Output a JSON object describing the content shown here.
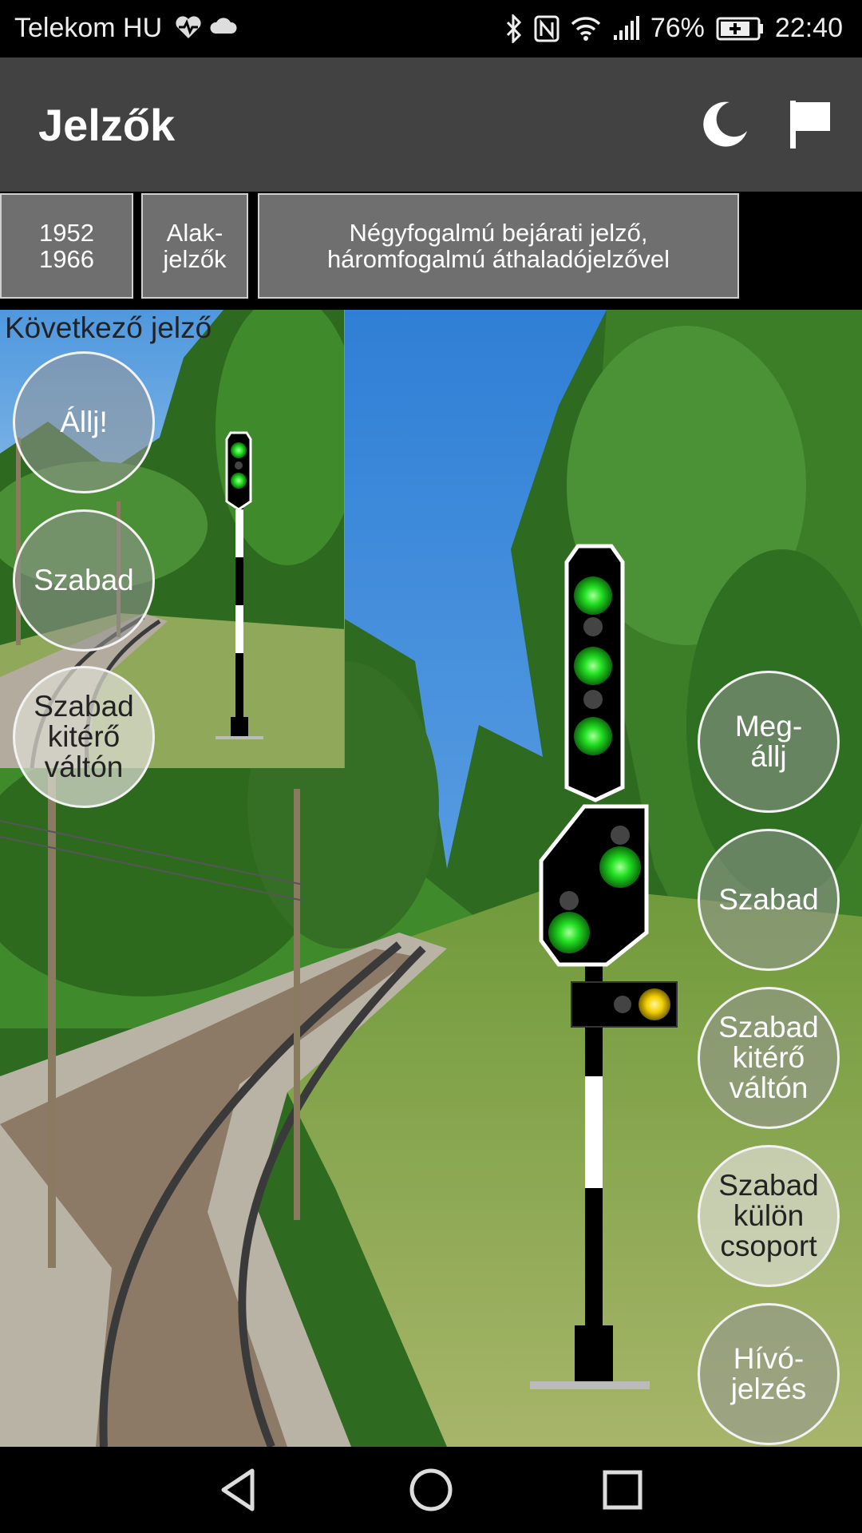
{
  "status_bar": {
    "carrier": "Telekom HU",
    "battery": "76%",
    "time": "22:40",
    "icons": [
      "heart-monitor-icon",
      "cloud-icon",
      "bluetooth-icon",
      "nfc-icon",
      "wifi-icon",
      "signal-icon",
      "battery-charging-icon"
    ]
  },
  "toolbar": {
    "title": "Jelzők",
    "actions": [
      "night-mode-icon",
      "flag-icon"
    ]
  },
  "tabs": [
    {
      "label": "1952\n1966"
    },
    {
      "label": "Alak-\njelzők"
    },
    {
      "label": "Négyfogalmú bejárati jelző,\nháromfogalmú áthaladójelzővel"
    }
  ],
  "inset": {
    "label": "Következő jelző",
    "buttons": [
      {
        "label": "Állj!"
      },
      {
        "label": "Szabad"
      },
      {
        "label": "Szabad\nkitérő\nváltón"
      }
    ]
  },
  "main_buttons": [
    {
      "label": "Meg-\nállj"
    },
    {
      "label": "Szabad"
    },
    {
      "label": "Szabad\nkitérő\nváltón"
    },
    {
      "label": "Szabad\nkülön\ncsoport"
    },
    {
      "label": "Hívó-\njelzés"
    }
  ],
  "colors": {
    "toolbar": "#424242",
    "tab": "#6f6f6f",
    "signal_green": "#22e022",
    "signal_yellow": "#f2d000"
  },
  "nav_bar": [
    "back-icon",
    "home-icon",
    "recents-icon"
  ]
}
